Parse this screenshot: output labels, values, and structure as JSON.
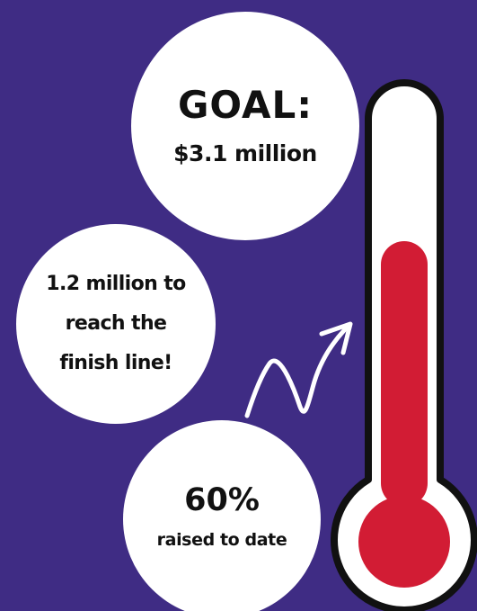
{
  "colors": {
    "background": "#3f2c84",
    "bubble": "#ffffff",
    "text": "#111111",
    "thermometer_fill": "#d21c34",
    "thermometer_outline": "#111111",
    "arrow": "#ffffff"
  },
  "goal": {
    "label": "GOAL:",
    "amount": "$3.1 million"
  },
  "remaining": {
    "lines": [
      "1.2 million to",
      "reach the",
      "finish line!"
    ]
  },
  "raised": {
    "percent_text": "60%",
    "caption": "raised to date",
    "fraction": 0.6
  },
  "icons": {
    "arrow": "squiggle-arrow-icon",
    "thermometer": "thermometer-icon"
  }
}
